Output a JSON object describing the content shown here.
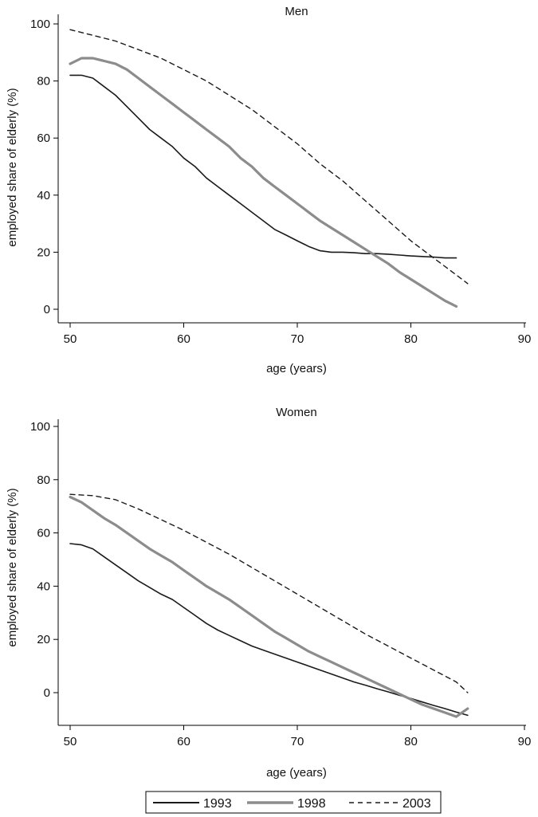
{
  "colors": {
    "1993": "#1a1a1a",
    "1998": "#8c8c8c",
    "2003": "#1a1a1a"
  },
  "chart_data": [
    {
      "type": "line",
      "title": "Men",
      "xlabel": "age (years)",
      "ylabel": "employed share of elderly (%)",
      "xlim": [
        50,
        90
      ],
      "ylim": [
        0,
        100
      ],
      "xticks": [
        "50",
        "60",
        "70",
        "80",
        "90"
      ],
      "yticks": [
        "0",
        "20",
        "40",
        "60",
        "80",
        "100"
      ],
      "series": [
        {
          "name": "1993",
          "style": "solid-thin",
          "x": [
            50,
            51,
            52,
            53,
            54,
            55,
            56,
            57,
            58,
            59,
            60,
            61,
            62,
            63,
            64,
            65,
            66,
            67,
            68,
            69,
            70,
            71,
            72,
            73,
            74,
            75,
            76,
            77,
            78,
            79,
            80,
            81,
            82,
            83,
            84
          ],
          "y": [
            82,
            82,
            81,
            78,
            75,
            71,
            67,
            63,
            60,
            57,
            53,
            50,
            46,
            43,
            40,
            37,
            34,
            31,
            28,
            26,
            24,
            22,
            20.5,
            20,
            20,
            19.8,
            19.5,
            19.5,
            19.3,
            19,
            18.7,
            18.5,
            18.3,
            18,
            18
          ]
        },
        {
          "name": "1998",
          "style": "solid-thick-gray",
          "x": [
            50,
            51,
            52,
            53,
            54,
            55,
            56,
            57,
            58,
            59,
            60,
            61,
            62,
            63,
            64,
            65,
            66,
            67,
            68,
            69,
            70,
            71,
            72,
            73,
            74,
            75,
            76,
            77,
            78,
            79,
            80,
            81,
            82,
            83,
            84
          ],
          "y": [
            86,
            88,
            88,
            87,
            86,
            84,
            81,
            78,
            75,
            72,
            69,
            66,
            63,
            60,
            57,
            53,
            50,
            46,
            43,
            40,
            37,
            34,
            31,
            28.5,
            26,
            23.5,
            21,
            18.5,
            16,
            13,
            10.5,
            8,
            5.5,
            3,
            1
          ]
        },
        {
          "name": "2003",
          "style": "dashed",
          "x": [
            50,
            52,
            54,
            56,
            58,
            60,
            62,
            64,
            66,
            68,
            70,
            72,
            74,
            76,
            78,
            80,
            82,
            84,
            85
          ],
          "y": [
            98,
            96,
            94,
            91,
            88,
            84,
            80,
            75,
            70,
            64,
            58,
            51,
            45,
            38,
            31,
            24,
            18,
            12,
            9
          ]
        }
      ]
    },
    {
      "type": "line",
      "title": "Women",
      "xlabel": "age (years)",
      "ylabel": "employed share of elderly (%)",
      "xlim": [
        50,
        90
      ],
      "ylim": [
        -10,
        100
      ],
      "xticks": [
        "50",
        "60",
        "70",
        "80",
        "90"
      ],
      "yticks": [
        "0",
        "20",
        "40",
        "60",
        "80",
        "100"
      ],
      "series": [
        {
          "name": "1993",
          "style": "solid-thin",
          "x": [
            50,
            51,
            52,
            53,
            54,
            55,
            56,
            57,
            58,
            59,
            60,
            61,
            62,
            63,
            64,
            65,
            66,
            67,
            68,
            69,
            70,
            71,
            72,
            73,
            74,
            75,
            76,
            77,
            78,
            79,
            80,
            81,
            82,
            83,
            84,
            85
          ],
          "y": [
            56,
            55.5,
            54,
            51,
            48,
            45,
            42,
            39.5,
            37,
            35,
            32,
            29,
            26,
            23.5,
            21.5,
            19.5,
            17.5,
            16,
            14.5,
            13,
            11.5,
            10,
            8.5,
            7,
            5.5,
            4,
            2.8,
            1.5,
            0.3,
            -1,
            -2.2,
            -3.5,
            -4.8,
            -6,
            -7.3,
            -8.5
          ]
        },
        {
          "name": "1998",
          "style": "solid-thick-gray",
          "x": [
            50,
            51,
            52,
            53,
            54,
            55,
            56,
            57,
            58,
            59,
            60,
            61,
            62,
            63,
            64,
            65,
            66,
            67,
            68,
            69,
            70,
            71,
            72,
            73,
            74,
            75,
            76,
            77,
            78,
            79,
            80,
            81,
            82,
            83,
            84,
            85
          ],
          "y": [
            73.5,
            71.5,
            68.5,
            65.5,
            63,
            60,
            57,
            54,
            51.5,
            49,
            46,
            43,
            40,
            37.5,
            35,
            32,
            29,
            26,
            23,
            20.5,
            18,
            15.5,
            13.5,
            11.5,
            9.5,
            7.5,
            5.5,
            3.5,
            1.5,
            -0.5,
            -2.5,
            -4.5,
            -6,
            -7.5,
            -9,
            -6
          ]
        },
        {
          "name": "2003",
          "style": "dashed",
          "x": [
            50,
            52,
            54,
            56,
            58,
            60,
            62,
            64,
            66,
            68,
            70,
            72,
            74,
            76,
            78,
            80,
            82,
            84,
            85
          ],
          "y": [
            74.5,
            74,
            72.5,
            69,
            65,
            61,
            56.5,
            52,
            47,
            42,
            37,
            32,
            27,
            22,
            17.5,
            13,
            8.5,
            4,
            0
          ]
        }
      ]
    }
  ],
  "legend": {
    "position": "bottom-center",
    "entries": [
      "1993",
      "1998",
      "2003"
    ]
  }
}
